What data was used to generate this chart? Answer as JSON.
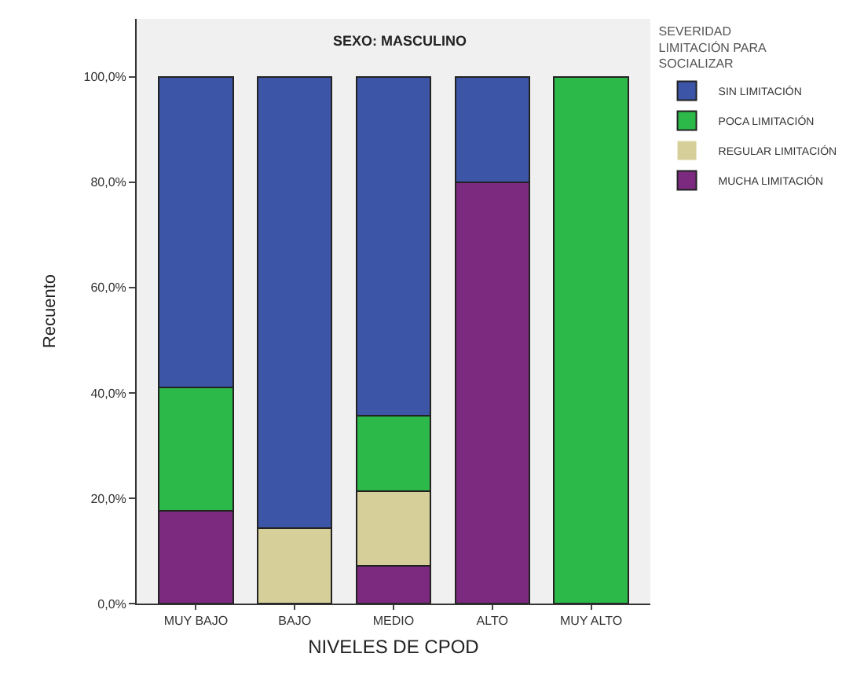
{
  "chart_data": {
    "type": "bar",
    "stacked": true,
    "title": "SEXO: MASCULINO",
    "xlabel": "NIVELES DE CPOD",
    "ylabel": "Recuento",
    "legend_title": "SEVERIDAD\nLIMITACIÓN PARA\nSOCIALIZAR",
    "categories": [
      "MUY BAJO",
      "BAJO",
      "MEDIO",
      "ALTO",
      "MUY ALTO"
    ],
    "series": [
      {
        "name": "MUCHA LIMITACIÓN",
        "color": "#7b2a80",
        "values": [
          17.6,
          0,
          7.1,
          80,
          0
        ]
      },
      {
        "name": "REGULAR LIMITACIÓN",
        "color": "#d6cf9a",
        "values": [
          0,
          14.3,
          14.3,
          0,
          0
        ]
      },
      {
        "name": "POCA LIMITACIÓN",
        "color": "#2db84a",
        "values": [
          23.5,
          0,
          14.3,
          0,
          100
        ]
      },
      {
        "name": "SIN LIMITACIÓN",
        "color": "#3d55a6",
        "values": [
          58.9,
          85.7,
          64.3,
          20,
          0
        ]
      }
    ],
    "ylim": [
      0,
      111
    ],
    "yticks": [
      {
        "value": 0,
        "label": "0,0%"
      },
      {
        "value": 20,
        "label": "20,0%"
      },
      {
        "value": 40,
        "label": "40,0%"
      },
      {
        "value": 60,
        "label": "60,0%"
      },
      {
        "value": 80,
        "label": "80,0%"
      },
      {
        "value": 100,
        "label": "100,0%"
      }
    ],
    "grid": false,
    "legend": "right"
  }
}
